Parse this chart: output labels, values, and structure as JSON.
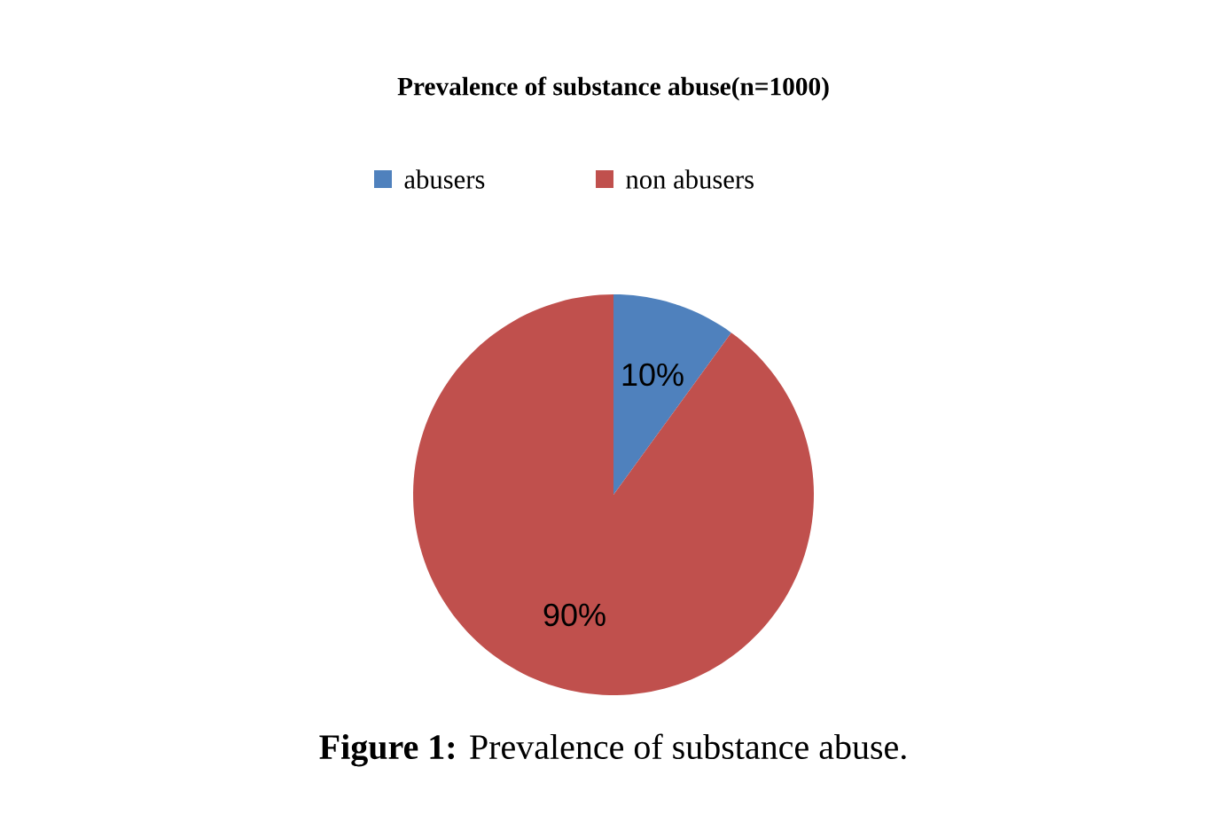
{
  "chart_data": {
    "type": "pie",
    "title": "Prevalence  of substance abuse(n=1000)",
    "categories": [
      "abusers",
      "non abusers"
    ],
    "values": [
      10,
      90
    ],
    "colors": [
      "#4f81bd",
      "#c0504d"
    ],
    "value_labels": [
      "10%",
      "90%"
    ],
    "legend": "top",
    "annotations": [
      "**Figure 1:** Prevalence of substance abuse."
    ]
  }
}
